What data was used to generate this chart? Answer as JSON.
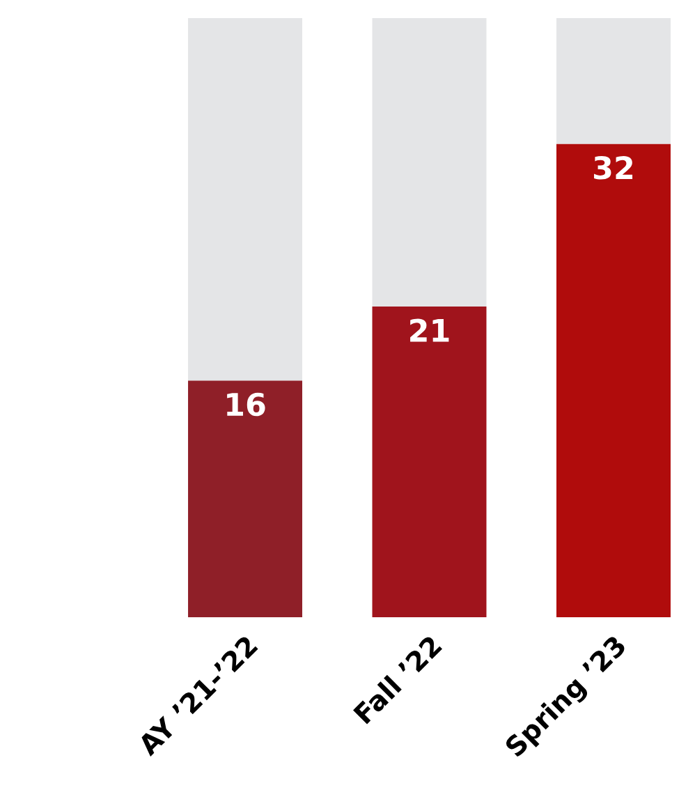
{
  "chart_data": {
    "type": "bar",
    "stacked": true,
    "ylim": [
      0,
      40.5
    ],
    "tick_labels": "x",
    "categories": [
      "AY ’21-’22",
      "Fall ’22",
      "Spring ’23"
    ],
    "series": [
      {
        "colors": [
          "#8f1f28",
          "#a0141c",
          "#b00c0c"
        ],
        "values": [
          16,
          21,
          32
        ],
        "value_labels": [
          "16",
          "21",
          "32"
        ]
      },
      {
        "color": "#e4e5e7",
        "values": [
          24.5,
          19.5,
          8.5
        ]
      }
    ]
  }
}
